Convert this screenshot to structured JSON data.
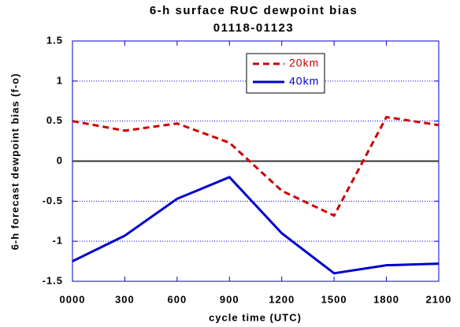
{
  "chart_data": {
    "type": "line",
    "title": "6-h surface RUC dewpoint bias",
    "subtitle": "01118-01123",
    "x_label": "cycle time (UTC)",
    "y_label": "6-h forecast dewpoint  bias (f-o)",
    "categories": [
      "0000",
      "300",
      "600",
      "900",
      "1200",
      "1500",
      "1800",
      "2100"
    ],
    "series": [
      {
        "name": "20km",
        "color": "#cc0000",
        "dash": true,
        "values": [
          0.5,
          0.38,
          0.47,
          0.23,
          -0.37,
          -0.68,
          0.55,
          0.45
        ]
      },
      {
        "name": "40km",
        "color": "#0000cc",
        "dash": false,
        "values": [
          -1.25,
          -0.93,
          -0.47,
          -0.2,
          -0.9,
          -1.4,
          -1.3,
          -1.28
        ]
      }
    ],
    "ylim": [
      -1.5,
      1.5
    ],
    "yticks": [
      1.5,
      1,
      0.5,
      0,
      -0.5,
      -1,
      -1.5
    ],
    "grid": true,
    "legend": "top-right"
  }
}
